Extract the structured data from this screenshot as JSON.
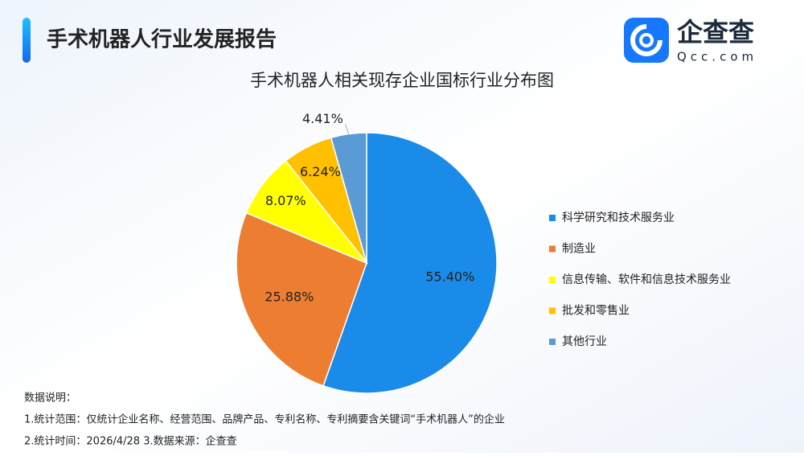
{
  "header": {
    "title": "手术机器人行业发展报告",
    "logo_name": "企查查",
    "logo_url": "Qcc.com"
  },
  "chart_data": {
    "type": "pie",
    "title": "手术机器人相关现存企业国标行业分布图",
    "categories": [
      "科学研究和技术服务业",
      "制造业",
      "信息传输、软件和信息技术服务业",
      "批发和零售业",
      "其他行业"
    ],
    "values": [
      55.4,
      25.88,
      8.07,
      6.24,
      4.41
    ],
    "value_labels": [
      "55.40%",
      "25.88%",
      "8.07%",
      "6.24%",
      "4.41%"
    ],
    "colors": [
      "#1a8be8",
      "#ed7d31",
      "#ffff00",
      "#ffc000",
      "#5b9bd5"
    ],
    "legend": "right"
  },
  "notes": [
    "数据说明：",
    "1.统计范围：仅统计企业名称、经营范围、品牌产品、专利名称、专利摘要含关键词“手术机器人”的企业",
    "2.统计时间：2026/4/28  3.数据来源：企查查"
  ]
}
